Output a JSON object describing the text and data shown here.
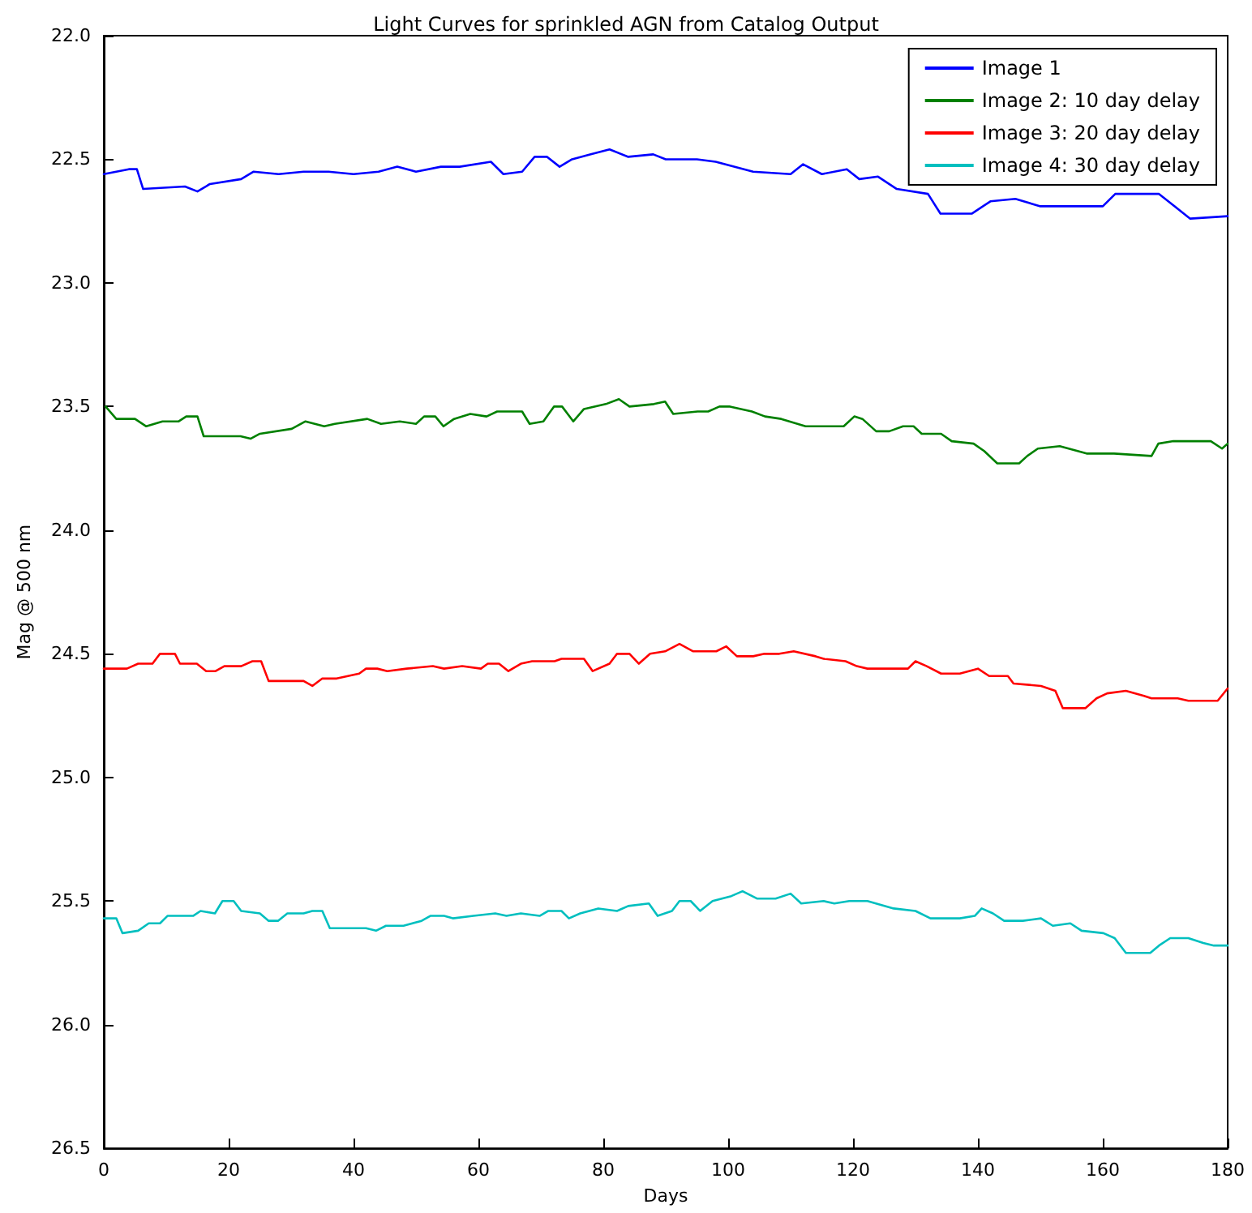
{
  "chart_data": {
    "type": "line",
    "title": "Light Curves for sprinkled AGN from Catalog Output",
    "xlabel": "Days",
    "ylabel": "Mag @ 500 nm",
    "xlim": [
      0,
      180
    ],
    "xticks": [
      0,
      20,
      40,
      60,
      80,
      100,
      120,
      140,
      160,
      180
    ],
    "ylim": [
      26.5,
      22.0
    ],
    "yticks": [
      {
        "value": 22.0,
        "label": "22.0"
      },
      {
        "value": 22.5,
        "label": "22.5"
      },
      {
        "value": 23.0,
        "label": "23.0"
      },
      {
        "value": 23.5,
        "label": "23.5"
      },
      {
        "value": 24.0,
        "label": "24.0"
      },
      {
        "value": 24.5,
        "label": "24.5"
      },
      {
        "value": 25.0,
        "label": "25.0"
      },
      {
        "value": 25.5,
        "label": "25.5"
      },
      {
        "value": 26.0,
        "label": "26.0"
      },
      {
        "value": 26.5,
        "label": "26.5"
      }
    ],
    "grid": false,
    "legend": "top right",
    "marker": "none",
    "line_style": "solid",
    "series": [
      {
        "name": "Image 1",
        "color": "#0000ff",
        "x": [
          0,
          4,
          5.3,
          6.3,
          13,
          15,
          17,
          22,
          24,
          28,
          32,
          36,
          40,
          44,
          47,
          50,
          54,
          57,
          62,
          64,
          67,
          69,
          71,
          73,
          75,
          78,
          81,
          84,
          88,
          90,
          95,
          98,
          104,
          110,
          112,
          115,
          119,
          121,
          124,
          127,
          132,
          134,
          139,
          142,
          146,
          150,
          160,
          162,
          169,
          172,
          174,
          180
        ],
        "values": [
          22.56,
          22.54,
          22.54,
          22.62,
          22.61,
          22.63,
          22.6,
          22.58,
          22.55,
          22.56,
          22.55,
          22.55,
          22.56,
          22.55,
          22.53,
          22.55,
          22.53,
          22.53,
          22.51,
          22.56,
          22.55,
          22.49,
          22.49,
          22.53,
          22.5,
          22.48,
          22.46,
          22.49,
          22.48,
          22.5,
          22.5,
          22.51,
          22.55,
          22.56,
          22.52,
          22.56,
          22.54,
          22.58,
          22.57,
          22.62,
          22.64,
          22.72,
          22.72,
          22.67,
          22.66,
          22.69,
          22.69,
          22.64,
          22.64,
          22.7,
          22.74,
          22.73
        ]
      },
      {
        "name": "Image 2: 10 day delay",
        "color": "#008000",
        "x": [
          0.3,
          2,
          5,
          6.8,
          9.4,
          12,
          13.2,
          15,
          16,
          21.9,
          23.5,
          25,
          30.1,
          32.3,
          35.3,
          37,
          42.2,
          44.4,
          47.4,
          50,
          51.3,
          53.1,
          54.4,
          56.1,
          58.7,
          61.3,
          63,
          67,
          68.2,
          70.4,
          72.1,
          73.4,
          75.2,
          76.9,
          80.4,
          82.5,
          84.2,
          88.1,
          89.9,
          91.2,
          95.1,
          96.8,
          98.6,
          100.3,
          103.8,
          105.9,
          108.5,
          112.4,
          115.9,
          118.5,
          120.2,
          121.5,
          123.7,
          125.8,
          128,
          129.7,
          131,
          134.1,
          135.8,
          139.3,
          141,
          143.1,
          146.6,
          147.9,
          149.6,
          153.1,
          157.4,
          161.8,
          167.8,
          168.9,
          171.3,
          177.3,
          179.1,
          180
        ],
        "values": [
          23.5,
          23.55,
          23.55,
          23.58,
          23.56,
          23.56,
          23.54,
          23.54,
          23.62,
          23.62,
          23.63,
          23.61,
          23.59,
          23.56,
          23.58,
          23.57,
          23.55,
          23.57,
          23.56,
          23.57,
          23.54,
          23.54,
          23.58,
          23.55,
          23.53,
          23.54,
          23.52,
          23.52,
          23.57,
          23.56,
          23.5,
          23.5,
          23.56,
          23.51,
          23.49,
          23.47,
          23.5,
          23.49,
          23.48,
          23.53,
          23.52,
          23.52,
          23.5,
          23.5,
          23.52,
          23.54,
          23.55,
          23.58,
          23.58,
          23.58,
          23.54,
          23.55,
          23.6,
          23.6,
          23.58,
          23.58,
          23.61,
          23.61,
          23.64,
          23.65,
          23.68,
          23.73,
          23.73,
          23.7,
          23.67,
          23.66,
          23.69,
          23.69,
          23.7,
          23.65,
          23.64,
          23.64,
          23.67,
          23.65
        ]
      },
      {
        "name": "Image 3: 20 day delay",
        "color": "#ff0000",
        "x": [
          0,
          3.7,
          5.5,
          7.8,
          9,
          11.4,
          12.2,
          14.9,
          16.4,
          17.9,
          19.3,
          22,
          23.8,
          25.2,
          26.4,
          32,
          33.4,
          35,
          37.3,
          40.9,
          42,
          43.8,
          45.4,
          48.5,
          52.7,
          54.5,
          57.4,
          60.4,
          61.5,
          63.3,
          64.8,
          66.8,
          68.6,
          72.2,
          73.3,
          76.9,
          78.3,
          81,
          82.2,
          84.2,
          85.7,
          87.5,
          89.9,
          92.2,
          94.4,
          98.1,
          99.7,
          101.4,
          104,
          105.8,
          108.2,
          110.5,
          114,
          115.3,
          118.8,
          120.6,
          122.3,
          128.8,
          130,
          131.8,
          134.1,
          137.1,
          140,
          141.8,
          144.8,
          145.7,
          150.1,
          152.4,
          153.6,
          157.2,
          159,
          160.7,
          163.7,
          166.6,
          167.8,
          172,
          173.7,
          178.4,
          180
        ],
        "values": [
          24.56,
          24.56,
          24.54,
          24.54,
          24.5,
          24.5,
          24.54,
          24.54,
          24.57,
          24.57,
          24.55,
          24.55,
          24.53,
          24.53,
          24.61,
          24.61,
          24.63,
          24.6,
          24.6,
          24.58,
          24.56,
          24.56,
          24.57,
          24.56,
          24.55,
          24.56,
          24.55,
          24.56,
          24.54,
          24.54,
          24.57,
          24.54,
          24.53,
          24.53,
          24.52,
          24.52,
          24.57,
          24.54,
          24.5,
          24.5,
          24.54,
          24.5,
          24.49,
          24.46,
          24.49,
          24.49,
          24.47,
          24.51,
          24.51,
          24.5,
          24.5,
          24.49,
          24.51,
          24.52,
          24.53,
          24.55,
          24.56,
          24.56,
          24.53,
          24.55,
          24.58,
          24.58,
          24.56,
          24.59,
          24.59,
          24.62,
          24.63,
          24.65,
          24.72,
          24.72,
          24.68,
          24.66,
          24.65,
          24.67,
          24.68,
          24.68,
          24.69,
          24.69,
          24.64
        ]
      },
      {
        "name": "Image 4: 30 day delay",
        "color": "#00bfbf",
        "x": [
          0,
          2,
          3,
          5.5,
          7.2,
          9,
          10.2,
          14.3,
          15.5,
          17.8,
          19,
          20.8,
          22,
          25,
          26.4,
          27.9,
          29.4,
          32,
          33.4,
          35,
          36.2,
          42,
          43.6,
          45.2,
          48,
          50.9,
          52.3,
          54.5,
          55.9,
          59.2,
          62.7,
          64.5,
          66.8,
          69.8,
          71.2,
          73.3,
          74.5,
          76.3,
          79.2,
          82.2,
          84,
          87.3,
          88.7,
          91,
          92.2,
          94,
          95.5,
          97.5,
          100.5,
          102.3,
          104.6,
          107.6,
          110,
          111.7,
          115.3,
          117,
          119.4,
          122.3,
          126.5,
          130,
          132.4,
          137.1,
          139.5,
          140.6,
          142.4,
          144.2,
          147.2,
          150.1,
          152,
          154.8,
          156.6,
          160.1,
          161.9,
          163.7,
          167.6,
          169,
          170.8,
          173.7,
          176.1,
          177.8,
          180
        ],
        "values": [
          25.57,
          25.57,
          25.63,
          25.62,
          25.59,
          25.59,
          25.56,
          25.56,
          25.54,
          25.55,
          25.5,
          25.5,
          25.54,
          25.55,
          25.58,
          25.58,
          25.55,
          25.55,
          25.54,
          25.54,
          25.61,
          25.61,
          25.62,
          25.6,
          25.6,
          25.58,
          25.56,
          25.56,
          25.57,
          25.56,
          25.55,
          25.56,
          25.55,
          25.56,
          25.54,
          25.54,
          25.57,
          25.55,
          25.53,
          25.54,
          25.52,
          25.51,
          25.56,
          25.54,
          25.5,
          25.5,
          25.54,
          25.5,
          25.48,
          25.46,
          25.49,
          25.49,
          25.47,
          25.51,
          25.5,
          25.51,
          25.5,
          25.5,
          25.53,
          25.54,
          25.57,
          25.57,
          25.56,
          25.53,
          25.55,
          25.58,
          25.58,
          25.57,
          25.6,
          25.59,
          25.62,
          25.63,
          25.65,
          25.71,
          25.71,
          25.68,
          25.65,
          25.65,
          25.67,
          25.68,
          25.68
        ]
      }
    ]
  }
}
